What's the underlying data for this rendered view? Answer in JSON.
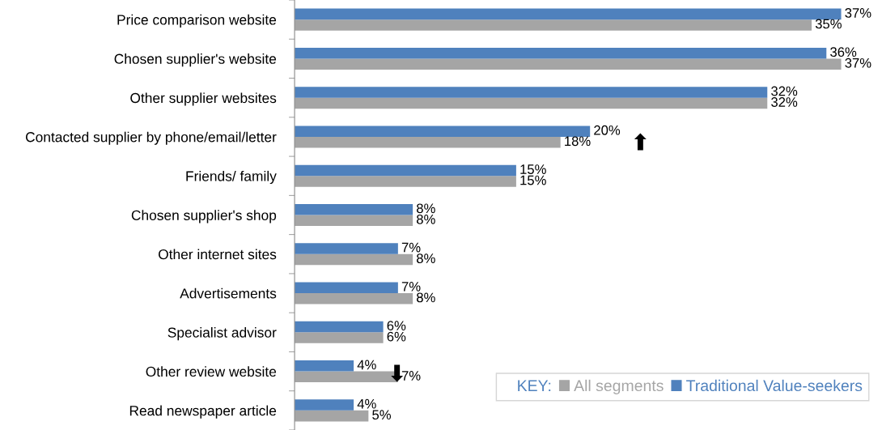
{
  "chart_data": {
    "type": "bar",
    "orientation": "horizontal",
    "categories": [
      "Price comparison website",
      "Chosen supplier's website",
      "Other supplier websites",
      "Contacted supplier by phone/email/letter",
      "Friends/ family",
      "Chosen supplier's shop",
      "Other internet sites",
      "Advertisements",
      "Specialist advisor",
      "Other review website",
      "Read newspaper article"
    ],
    "series": [
      {
        "name": "All segments",
        "color": "#a5a5a5",
        "values": [
          35,
          37,
          32,
          18,
          15,
          8,
          8,
          8,
          6,
          7,
          5
        ],
        "value_labels": [
          "35%",
          "37%",
          "32%",
          "18%",
          "15%",
          "8%",
          "8%",
          "8%",
          "6%",
          "7%",
          "5%"
        ]
      },
      {
        "name": "Traditional Value-seekers",
        "color": "#4f81bd",
        "values": [
          37,
          36,
          32,
          20,
          15,
          8,
          7,
          7,
          6,
          4,
          4
        ],
        "value_labels": [
          "37%",
          "36%",
          "32%",
          "20%",
          "15%",
          "8%",
          "7%",
          "7%",
          "6%",
          "4%",
          "4%"
        ]
      }
    ],
    "legend": "bottom right",
    "legend_title": "KEY:",
    "grid": false,
    "annotations": [
      "⬆",
      "⬇"
    ]
  }
}
